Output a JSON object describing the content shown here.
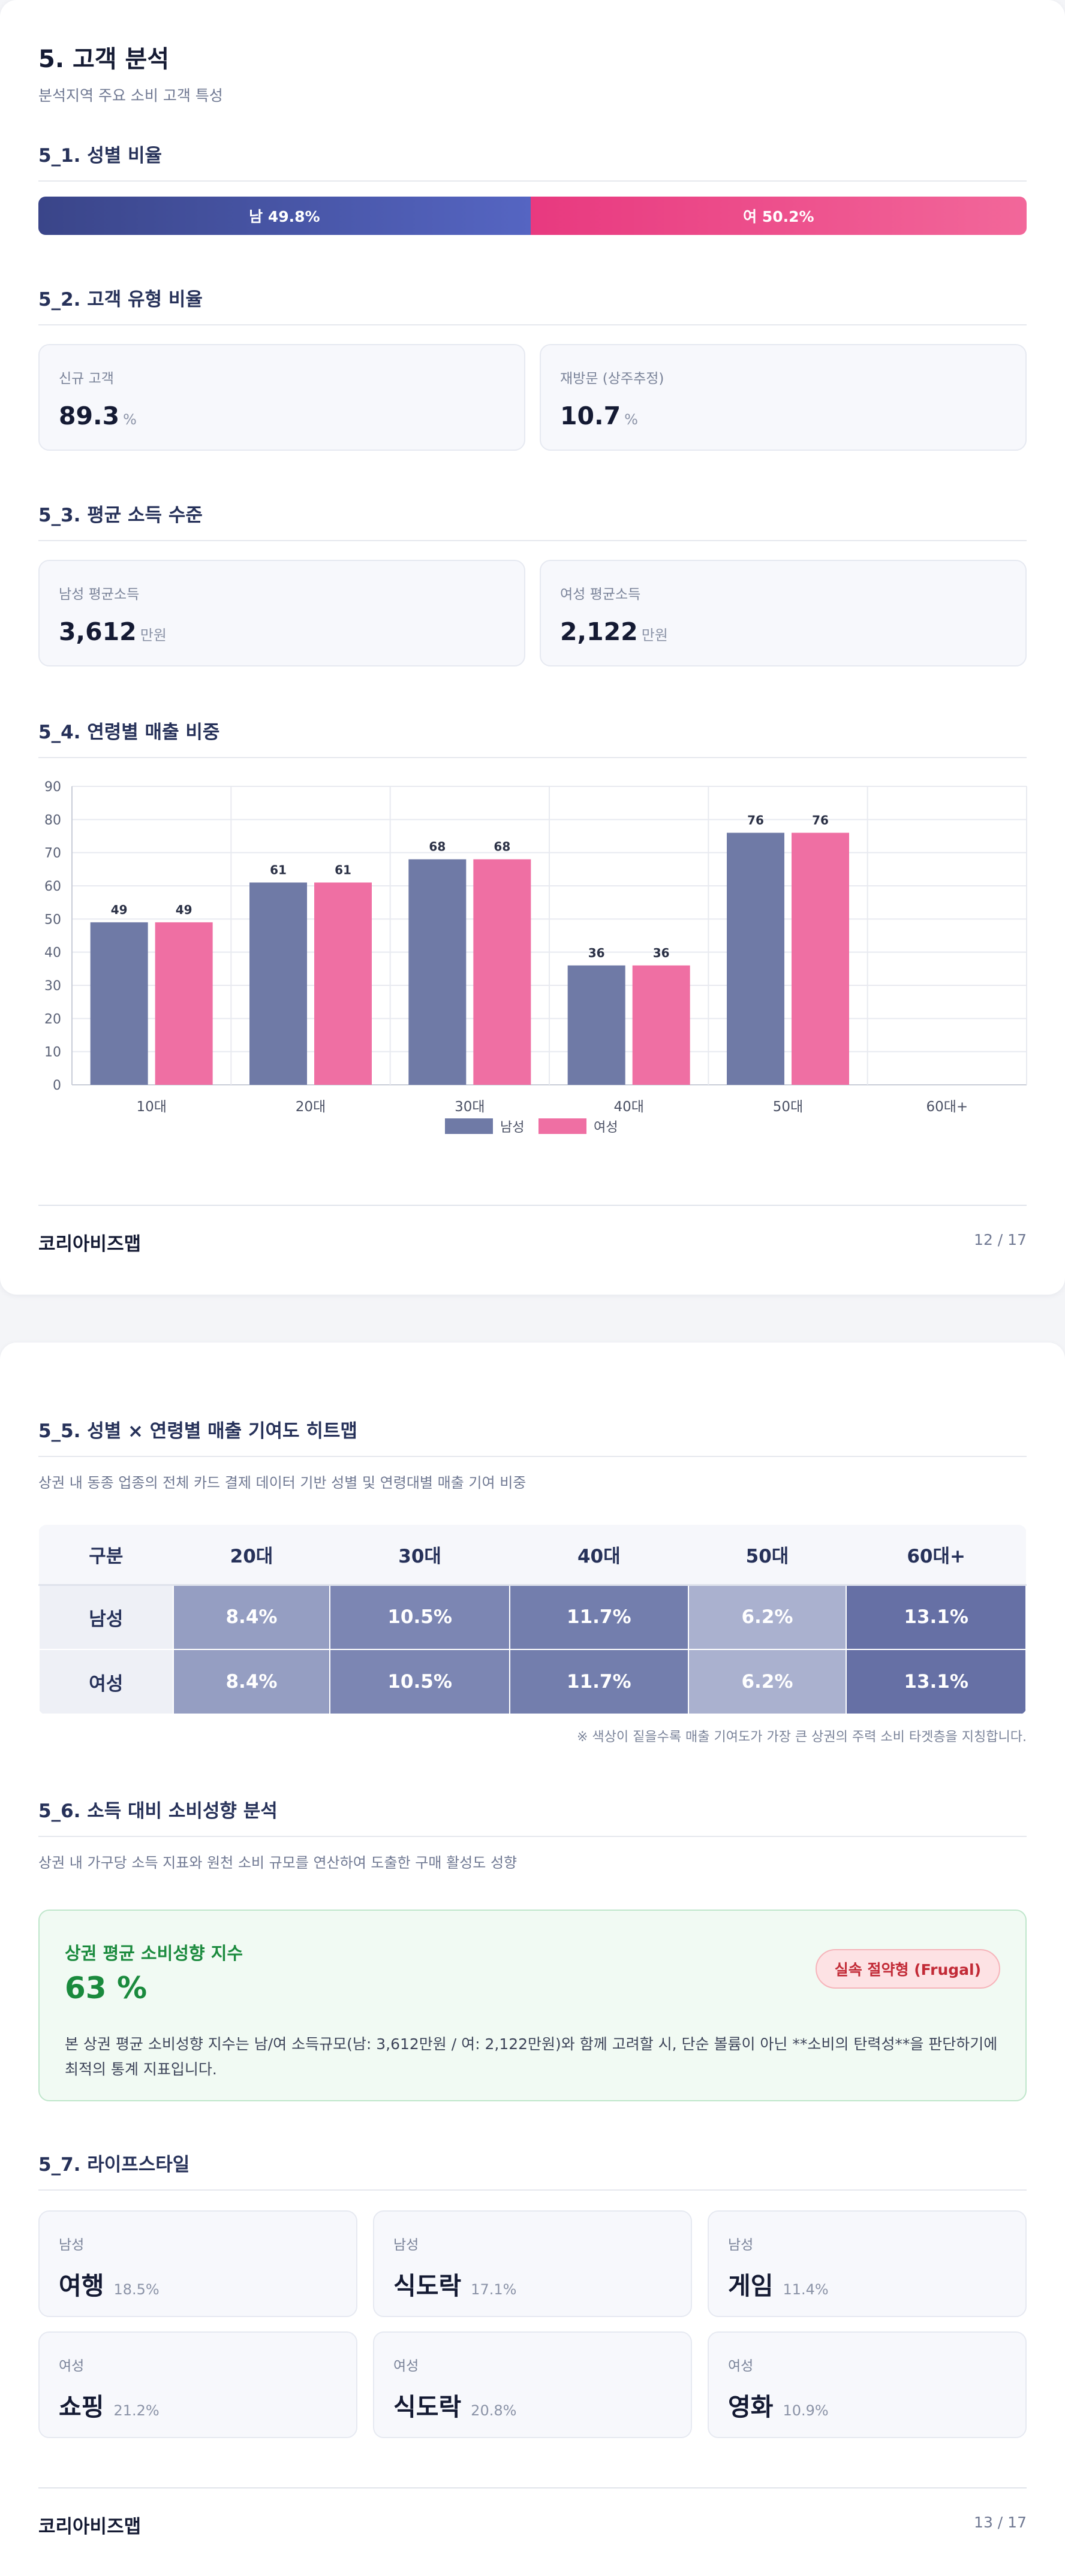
{
  "page1": {
    "title": "5. 고객 분석",
    "subtitle": "분석지역 주요 소비 고객 특성",
    "gender": {
      "heading": "5_1. 성별 비율",
      "male_label": "남 49.8%",
      "female_label": "여 50.2%",
      "male_pct": 49.8,
      "female_pct": 50.2,
      "male_color": "#4a58ad",
      "female_color": "#ec4a8a"
    },
    "customer_type": {
      "heading": "5_2. 고객 유형 비율",
      "cards": [
        {
          "label": "신규 고객",
          "value": "89.3",
          "unit": "%"
        },
        {
          "label": "재방문 (상주추정)",
          "value": "10.7",
          "unit": "%"
        }
      ]
    },
    "income": {
      "heading": "5_3. 평균 소득 수준",
      "cards": [
        {
          "label": "남성 평균소득",
          "value": "3,612",
          "unit": "만원"
        },
        {
          "label": "여성 평균소득",
          "value": "2,122",
          "unit": "만원"
        }
      ]
    },
    "age_sales": {
      "heading": "5_4. 연령별 매출 비중"
    },
    "footer": {
      "brand": "코리아비즈맵",
      "page": "12 / 17"
    }
  },
  "chart_data": {
    "type": "bar",
    "categories": [
      "10대",
      "20대",
      "30대",
      "40대",
      "50대",
      "60대+"
    ],
    "series": [
      {
        "name": "남성",
        "values": [
          49,
          61,
          68,
          36,
          76,
          null
        ],
        "color": "#6f7aa6"
      },
      {
        "name": "여성",
        "values": [
          49,
          61,
          68,
          36,
          76,
          null
        ],
        "color": "#ef6fa3"
      }
    ],
    "data_labels": [
      [
        "49",
        "61",
        "68",
        "36",
        "76",
        ""
      ],
      [
        "49",
        "61",
        "68",
        "36",
        "76",
        ""
      ]
    ],
    "ylim": [
      0,
      90
    ],
    "yticks": [
      0,
      10,
      20,
      30,
      40,
      50,
      60,
      70,
      80,
      90
    ],
    "xlabel": "",
    "ylabel": "",
    "grid": true,
    "legend": "bottom-center"
  },
  "page2": {
    "heatmap": {
      "heading": "5_5. 성별 × 연령별 매출 기여도 히트맵",
      "description": "상권 내 동종 업종의 전체 카드 결제 데이터 기반 성별 및 연령대별 매출 기여 비중",
      "columns": [
        "구분",
        "20대",
        "30대",
        "40대",
        "50대",
        "60대+"
      ],
      "rows": [
        {
          "label": "남성",
          "cells": [
            "8.4%",
            "10.5%",
            "11.7%",
            "6.2%",
            "13.1%"
          ]
        },
        {
          "label": "여성",
          "cells": [
            "8.4%",
            "10.5%",
            "11.7%",
            "6.2%",
            "13.1%"
          ]
        }
      ],
      "cell_colors": [
        "#959ec2",
        "#7c86b3",
        "#737ead",
        "#aab1cf",
        "#6670a5"
      ],
      "note": "※ 색상이 짙을수록 매출 기여도가 가장 큰 상권의 주력 소비 타겟층을 지칭합니다."
    },
    "spending": {
      "heading": "5_6. 소득 대비 소비성향 분석",
      "description": "상권 내 가구당 소득 지표와 원천 소비 규모를 연산하여 도출한 구매 활성도 성향",
      "box_title": "상권 평균 소비성향 지수",
      "value": "63 %",
      "badge": "실속 절약형 (Frugal)",
      "detail": "본 상권 평균 소비성향 지수는 남/여 소득규모(남: 3,612만원 / 여: 2,122만원)와 함께 고려할 시, 단순 볼륨이 아닌 **소비의 탄력성**을 판단하기에 최적의 통계 지표입니다."
    },
    "lifestyle": {
      "heading": "5_7. 라이프스타일",
      "cards": [
        {
          "gender": "남성",
          "category": "여행",
          "pct": "18.5%"
        },
        {
          "gender": "남성",
          "category": "식도락",
          "pct": "17.1%"
        },
        {
          "gender": "남성",
          "category": "게임",
          "pct": "11.4%"
        },
        {
          "gender": "여성",
          "category": "쇼핑",
          "pct": "21.2%"
        },
        {
          "gender": "여성",
          "category": "식도락",
          "pct": "20.8%"
        },
        {
          "gender": "여성",
          "category": "영화",
          "pct": "10.9%"
        }
      ]
    },
    "footer": {
      "brand": "코리아비즈맵",
      "page": "13 / 17"
    }
  }
}
